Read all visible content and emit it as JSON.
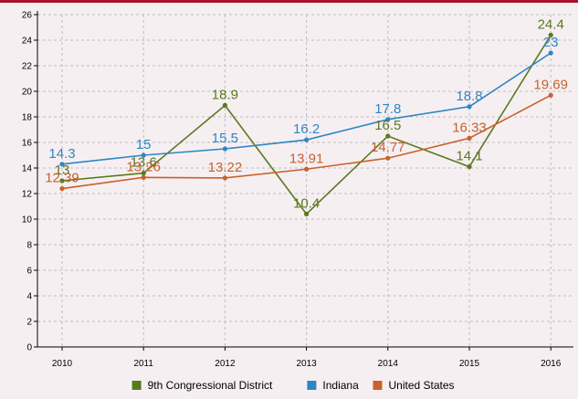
{
  "chart_data": {
    "type": "line",
    "title": "",
    "xlabel": "",
    "ylabel": "",
    "categories": [
      "2010",
      "2011",
      "2012",
      "2013",
      "2014",
      "2015",
      "2016"
    ],
    "ylim": [
      0,
      26
    ],
    "yticks": [
      0,
      2,
      4,
      6,
      8,
      10,
      12,
      14,
      16,
      18,
      20,
      22,
      24,
      26
    ],
    "grid": true,
    "legend": "bottom",
    "series": [
      {
        "name": "9th Congressional District",
        "color": "#5a7a1e",
        "values": [
          13,
          13.6,
          18.9,
          10.4,
          16.5,
          14.1,
          24.4
        ],
        "labels": [
          "13",
          "13.6",
          "18.9",
          "10.4",
          "16.5",
          "14.1",
          "24.4"
        ]
      },
      {
        "name": "Indiana",
        "color": "#2e86c1",
        "values": [
          14.3,
          15,
          15.5,
          16.2,
          17.8,
          18.8,
          23
        ],
        "labels": [
          "14.3",
          "15",
          "15.5",
          "16.2",
          "17.8",
          "18.8",
          "23"
        ]
      },
      {
        "name": "United States",
        "color": "#c8612b",
        "values": [
          12.39,
          13.26,
          13.22,
          13.91,
          14.77,
          16.33,
          19.69
        ],
        "labels": [
          "12.39",
          "13.26",
          "13.22",
          "13.91",
          "14.77",
          "16.33",
          "19.69"
        ]
      }
    ]
  }
}
